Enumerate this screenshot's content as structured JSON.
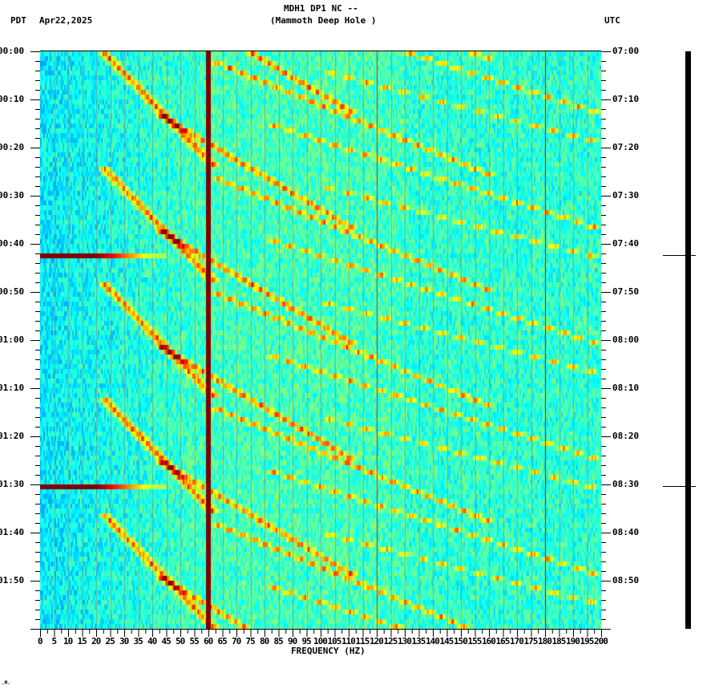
{
  "header": {
    "station": "MDH1 DP1 NC --",
    "location": "(Mammoth Deep Hole )",
    "left_tz": "PDT",
    "date": "Apr22,2025",
    "right_tz": "UTC"
  },
  "footer": {
    "mark": ".M."
  },
  "chart_data": {
    "type": "heatmap",
    "title": "MDH1 DP1 NC -- (Mammoth Deep Hole )",
    "subtitle": "Apr22,2025",
    "xlabel": "FREQUENCY (HZ)",
    "ylabel_left": "PDT",
    "ylabel_right": "UTC",
    "xlim": [
      0,
      200
    ],
    "x_ticks": [
      0,
      5,
      10,
      15,
      20,
      25,
      30,
      35,
      40,
      45,
      50,
      55,
      60,
      65,
      70,
      75,
      80,
      85,
      90,
      95,
      100,
      105,
      110,
      115,
      120,
      125,
      130,
      135,
      140,
      145,
      150,
      155,
      160,
      165,
      170,
      175,
      180,
      185,
      190,
      195,
      200
    ],
    "y_ticks_left": [
      "00:00",
      "00:10",
      "00:20",
      "00:30",
      "00:40",
      "00:50",
      "01:00",
      "01:10",
      "01:20",
      "01:30",
      "01:40",
      "01:50"
    ],
    "y_ticks_right": [
      "07:00",
      "07:10",
      "07:20",
      "07:30",
      "07:40",
      "07:50",
      "08:00",
      "08:10",
      "08:20",
      "08:30",
      "08:40",
      "08:50"
    ],
    "duration_minutes": 120,
    "colormap": "jet",
    "persistent_lines_hz": [
      {
        "freq": 60,
        "intensity": "max",
        "color": "#800000"
      },
      {
        "freq": 120,
        "intensity": "high",
        "color": "#b03020"
      },
      {
        "freq": 180,
        "intensity": "high",
        "color": "#702010"
      }
    ],
    "broadband_events_minutes": [
      42.5,
      90.5
    ],
    "gliding_tone_cycle_minutes": 24,
    "background_level": "low (blue/cyan)",
    "grid": "vertical lines every 5 Hz"
  },
  "right_panel": {
    "event_markers_minutes": [
      42.5,
      90.5
    ]
  }
}
